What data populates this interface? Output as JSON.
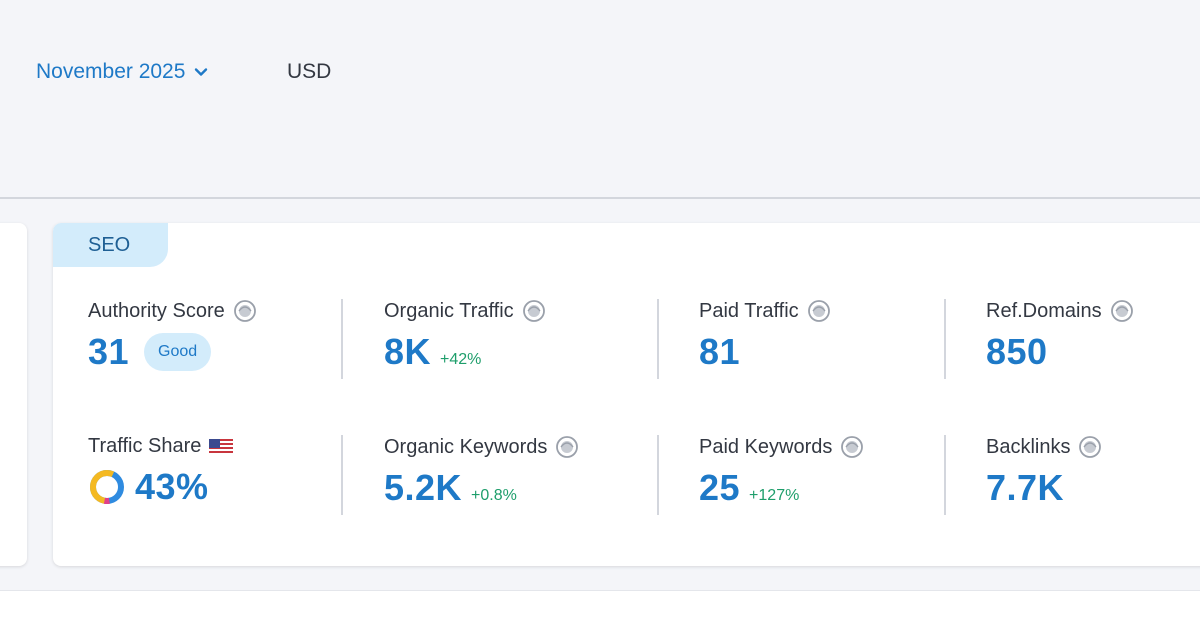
{
  "header": {
    "date_selector": "November 2025",
    "currency": "USD"
  },
  "seo_card": {
    "tag": "SEO",
    "authority_score": {
      "label": "Authority Score",
      "value": "31",
      "badge": "Good"
    },
    "organic_traffic": {
      "label": "Organic Traffic",
      "value": "8K",
      "delta": "+42%"
    },
    "paid_traffic": {
      "label": "Paid Traffic",
      "value": "81"
    },
    "ref_domains": {
      "label": "Ref.Domains",
      "value": "850"
    },
    "traffic_share": {
      "label": "Traffic Share",
      "value": "43%",
      "flag": "us-flag-icon"
    },
    "organic_keywords": {
      "label": "Organic Keywords",
      "value": "5.2K",
      "delta": "+0.8%"
    },
    "paid_keywords": {
      "label": "Paid Keywords",
      "value": "25",
      "delta": "+127%"
    },
    "backlinks": {
      "label": "Backlinks",
      "value": "7.7K"
    }
  },
  "colors": {
    "accent_blue": "#1e79c7",
    "delta_green": "#1e9e6b",
    "tag_bg": "#d3ecfb",
    "band_bg": "#f4f5f9"
  }
}
